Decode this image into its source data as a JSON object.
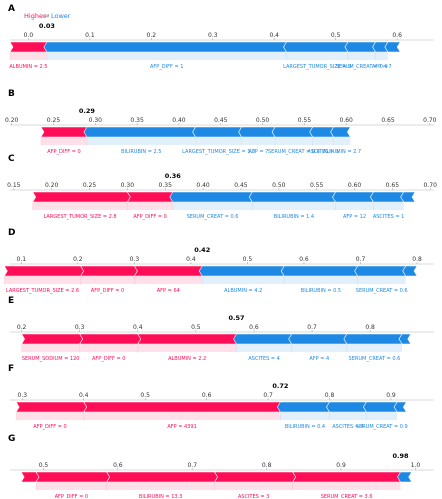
{
  "legend": {
    "higher": "Higher",
    "lower": "Lower",
    "arrows": "⇄"
  },
  "colors": {
    "positive": "#ff0d57",
    "negative": "#1e88e5",
    "label_pos": "#ff0d57",
    "label_neg": "#1e88e5"
  },
  "chart_data": [
    {
      "type": "force",
      "panel": "A",
      "xlim": [
        -0.03,
        0.66
      ],
      "ticks": [
        0.0,
        0.1,
        0.2,
        0.3,
        0.4,
        0.5,
        0.6
      ],
      "tick_labels": [
        "0.0",
        "0.1",
        "0.2",
        "0.3",
        "0.4",
        "0.5",
        "0.6"
      ],
      "output": 0.03,
      "output_label": "0.03",
      "positive": [
        {
          "name": "ALBUMIN = 2.5",
          "start": -0.03,
          "end": 0.03
        }
      ],
      "negative": [
        {
          "name": "AFP_DIFF = 1",
          "start": 0.03,
          "end": 0.42
        },
        {
          "name": "LARGEST_TUMOR_SIZE = 0",
          "start": 0.42,
          "end": 0.52
        },
        {
          "name": "SERUM_CREAT = 0.9",
          "start": 0.52,
          "end": 0.565
        },
        {
          "name": "AFP = 7",
          "start": 0.565,
          "end": 0.585
        },
        {
          "name": "",
          "start": 0.585,
          "end": 0.605
        }
      ]
    },
    {
      "type": "force",
      "panel": "B",
      "xlim": [
        0.198,
        0.705
      ],
      "ticks": [
        0.2,
        0.25,
        0.3,
        0.35,
        0.4,
        0.45,
        0.5,
        0.55,
        0.6,
        0.65,
        0.7
      ],
      "tick_labels": [
        "0.20",
        "0.25",
        "0.30",
        "0.35",
        "0.40",
        "0.45",
        "0.50",
        "0.55",
        "0.60",
        "0.65",
        "0.70"
      ],
      "output": 0.29,
      "output_label": "0.29",
      "positive": [
        {
          "name": "AFP_DIFF = 0",
          "start": 0.235,
          "end": 0.29
        }
      ],
      "negative": [
        {
          "name": "BILIRUBIN = 2.5",
          "start": 0.29,
          "end": 0.42
        },
        {
          "name": "LARGEST_TUMOR_SIZE = 1.3",
          "start": 0.42,
          "end": 0.475
        },
        {
          "name": "AFP = 7",
          "start": 0.475,
          "end": 0.515
        },
        {
          "name": "SERUM_CREAT = 0.6",
          "start": 0.515,
          "end": 0.56
        },
        {
          "name": "ASCITES = 1",
          "start": 0.56,
          "end": 0.585
        },
        {
          "name": "ALBUMIN = 2.7",
          "start": 0.585,
          "end": 0.605
        }
      ]
    },
    {
      "type": "force",
      "panel": "C",
      "xlim": [
        0.145,
        0.705
      ],
      "ticks": [
        0.15,
        0.2,
        0.25,
        0.3,
        0.35,
        0.4,
        0.45,
        0.5,
        0.55,
        0.6,
        0.65,
        0.7
      ],
      "tick_labels": [
        "0.15",
        "0.20",
        "0.25",
        "0.30",
        "0.35",
        "0.40",
        "0.45",
        "0.50",
        "0.55",
        "0.60",
        "0.65",
        "0.70"
      ],
      "output": 0.36,
      "output_label": "0.36",
      "positive": [
        {
          "name": "LARGEST_TUMOR_SIZE = 2.8",
          "start": 0.175,
          "end": 0.3
        },
        {
          "name": "AFP_DIFF = 0",
          "start": 0.3,
          "end": 0.36
        }
      ],
      "negative": [
        {
          "name": "SERUM_CREAT = 0.6",
          "start": 0.36,
          "end": 0.465
        },
        {
          "name": "BILIRUBIN = 1.4",
          "start": 0.465,
          "end": 0.575
        },
        {
          "name": "AFP = 12",
          "start": 0.575,
          "end": 0.625
        },
        {
          "name": "ASCITES = 1",
          "start": 0.625,
          "end": 0.665
        },
        {
          "name": "",
          "start": 0.665,
          "end": 0.68
        }
      ]
    },
    {
      "type": "force",
      "panel": "D",
      "xlim": [
        0.08,
        0.83
      ],
      "ticks": [
        0.1,
        0.2,
        0.3,
        0.4,
        0.5,
        0.6,
        0.7,
        0.8
      ],
      "tick_labels": [
        "0.1",
        "0.2",
        "0.3",
        "0.4",
        "0.5",
        "0.6",
        "0.7",
        "0.8"
      ],
      "output": 0.42,
      "output_label": "0.42",
      "positive": [
        {
          "name": "LARGEST_TUMOR_SIZE = 2.6",
          "start": 0.07,
          "end": 0.205
        },
        {
          "name": "AFP_DIFF = 0",
          "start": 0.205,
          "end": 0.3
        },
        {
          "name": "AFP = 64",
          "start": 0.3,
          "end": 0.42
        }
      ],
      "negative": [
        {
          "name": "ALBUMIN = 4.2",
          "start": 0.42,
          "end": 0.565
        },
        {
          "name": "BILIRUBIN = 0.5",
          "start": 0.565,
          "end": 0.695
        },
        {
          "name": "SERUM_CREAT = 0.6",
          "start": 0.695,
          "end": 0.78
        },
        {
          "name": "",
          "start": 0.78,
          "end": 0.8
        }
      ]
    },
    {
      "type": "force",
      "panel": "E",
      "xlim": [
        0.18,
        0.91
      ],
      "ticks": [
        0.2,
        0.3,
        0.4,
        0.5,
        0.6,
        0.7,
        0.8
      ],
      "tick_labels": [
        "0.2",
        "0.3",
        "0.4",
        "0.5",
        "0.6",
        "0.7",
        "0.8"
      ],
      "output": 0.57,
      "output_label": "0.57",
      "positive": [
        {
          "name": "SERUM_SODIUM = 120",
          "start": 0.2,
          "end": 0.3
        },
        {
          "name": "AFP_DIFF = 0",
          "start": 0.3,
          "end": 0.4
        },
        {
          "name": "ALBUMIN = 2.2",
          "start": 0.4,
          "end": 0.57
        }
      ],
      "negative": [
        {
          "name": "ASCITES = 4",
          "start": 0.57,
          "end": 0.665
        },
        {
          "name": "AFP = 4",
          "start": 0.665,
          "end": 0.76
        },
        {
          "name": "SERUM_CREAT = 0.6",
          "start": 0.76,
          "end": 0.855
        },
        {
          "name": "",
          "start": 0.855,
          "end": 0.87
        }
      ]
    },
    {
      "type": "force",
      "panel": "F",
      "xlim": [
        0.28,
        0.97
      ],
      "ticks": [
        0.3,
        0.4,
        0.5,
        0.6,
        0.7,
        0.8,
        0.9
      ],
      "tick_labels": [
        "0.3",
        "0.4",
        "0.5",
        "0.6",
        "0.7",
        "0.8",
        "0.9"
      ],
      "output": 0.72,
      "output_label": "0.72",
      "positive": [
        {
          "name": "AFP_DIFF = 0",
          "start": 0.29,
          "end": 0.4
        },
        {
          "name": "AFP = 4391",
          "start": 0.4,
          "end": 0.72
        }
      ],
      "negative": [
        {
          "name": "BILIRUBIN = 0.4",
          "start": 0.72,
          "end": 0.8
        },
        {
          "name": "ASCITES = 4",
          "start": 0.8,
          "end": 0.86
        },
        {
          "name": "SERUM_CREAT = 0.9",
          "start": 0.86,
          "end": 0.91
        },
        {
          "name": "",
          "start": 0.91,
          "end": 0.925
        }
      ]
    },
    {
      "type": "force",
      "panel": "G",
      "xlim": [
        0.455,
        1.025
      ],
      "ticks": [
        0.5,
        0.6,
        0.7,
        0.8,
        0.9,
        1.0
      ],
      "tick_labels": [
        "0.5",
        "0.6",
        "0.7",
        "0.8",
        "0.9",
        "1.0"
      ],
      "output": 0.98,
      "output_label": "0.98",
      "positive": [
        {
          "name": "",
          "start": 0.47,
          "end": 0.49
        },
        {
          "name": "AFP_DIFF = 0",
          "start": 0.49,
          "end": 0.585
        },
        {
          "name": "BILIRUBIN = 13.3",
          "start": 0.585,
          "end": 0.73
        },
        {
          "name": "ASCITES = 3",
          "start": 0.73,
          "end": 0.835
        },
        {
          "name": "SERUM_CREAT = 3.6",
          "start": 0.835,
          "end": 0.98
        }
      ],
      "negative": [
        {
          "name": "",
          "start": 0.98,
          "end": 0.995
        }
      ]
    }
  ]
}
